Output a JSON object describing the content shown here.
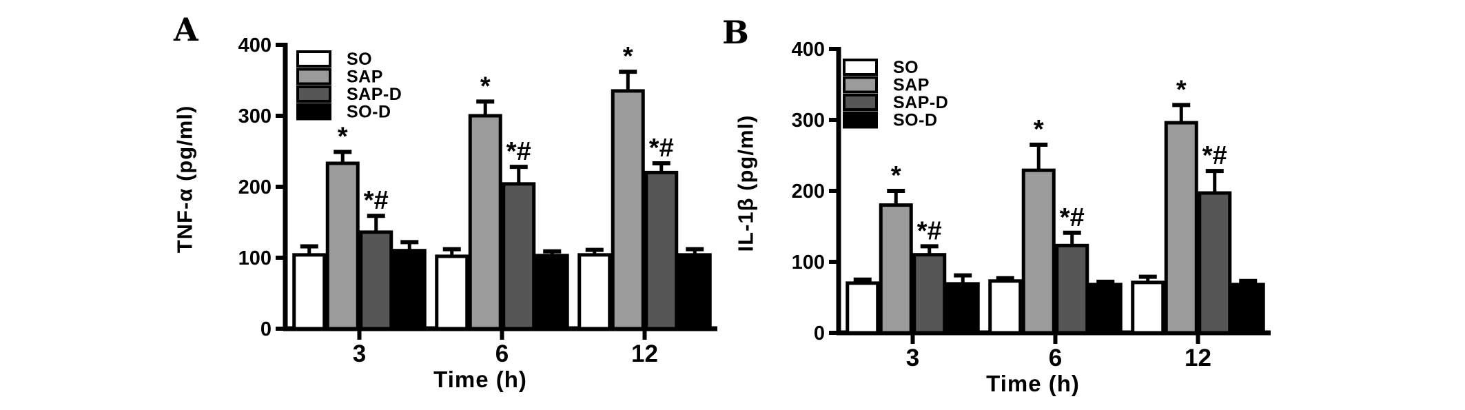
{
  "figure": {
    "background": "#ffffff",
    "axis_color": "#000000",
    "panels": [
      {
        "letter": "A",
        "ylabel": "TNF-α (pg/ml)",
        "xlabel": "Time (h)"
      },
      {
        "letter": "B",
        "ylabel": "IL-1β (pg/ml)",
        "xlabel": "Time (h)"
      }
    ]
  },
  "chart_data": [
    {
      "type": "bar",
      "panel": "A",
      "title": "",
      "ylabel": "TNF-α (pg/ml)",
      "xlabel": "Time (h)",
      "categories": [
        "3",
        "6",
        "12"
      ],
      "ylim": [
        0,
        400
      ],
      "yticks": [
        0,
        100,
        200,
        300,
        400
      ],
      "grid": false,
      "legend_position": "top-left-inside",
      "bar_outline": "#000000",
      "series": [
        {
          "name": "SO",
          "color": "#ffffff",
          "values": [
            104,
            102,
            104
          ],
          "errors": [
            12,
            10,
            7
          ],
          "sig": [
            "",
            "",
            ""
          ]
        },
        {
          "name": "SAP",
          "color": "#9b9b9b",
          "values": [
            233,
            300,
            335
          ],
          "errors": [
            16,
            20,
            27
          ],
          "sig": [
            "*",
            "*",
            "*"
          ]
        },
        {
          "name": "SAP-D",
          "color": "#565656",
          "values": [
            136,
            204,
            220
          ],
          "errors": [
            23,
            24,
            13
          ],
          "sig": [
            "*#",
            "*#",
            "*#"
          ]
        },
        {
          "name": "SO-D",
          "color": "#000000",
          "values": [
            110,
            103,
            104
          ],
          "errors": [
            12,
            6,
            8
          ],
          "sig": [
            "",
            "",
            ""
          ]
        }
      ]
    },
    {
      "type": "bar",
      "panel": "B",
      "title": "",
      "ylabel": "IL-1β (pg/ml)",
      "xlabel": "Time (h)",
      "categories": [
        "3",
        "6",
        "12"
      ],
      "ylim": [
        0,
        400
      ],
      "yticks": [
        0,
        100,
        200,
        300,
        400
      ],
      "grid": false,
      "legend_position": "top-left-inside",
      "bar_outline": "#000000",
      "series": [
        {
          "name": "SO",
          "color": "#ffffff",
          "values": [
            70,
            73,
            71
          ],
          "errors": [
            5,
            4,
            8
          ],
          "sig": [
            "",
            "",
            ""
          ]
        },
        {
          "name": "SAP",
          "color": "#9b9b9b",
          "values": [
            180,
            229,
            296
          ],
          "errors": [
            20,
            36,
            25
          ],
          "sig": [
            "*",
            "*",
            "*"
          ]
        },
        {
          "name": "SAP-D",
          "color": "#565656",
          "values": [
            110,
            123,
            197
          ],
          "errors": [
            12,
            18,
            31
          ],
          "sig": [
            "*#",
            "*#",
            "*#"
          ]
        },
        {
          "name": "SO-D",
          "color": "#000000",
          "values": [
            69,
            68,
            68
          ],
          "errors": [
            12,
            4,
            5
          ],
          "sig": [
            "",
            "",
            ""
          ]
        }
      ]
    }
  ]
}
